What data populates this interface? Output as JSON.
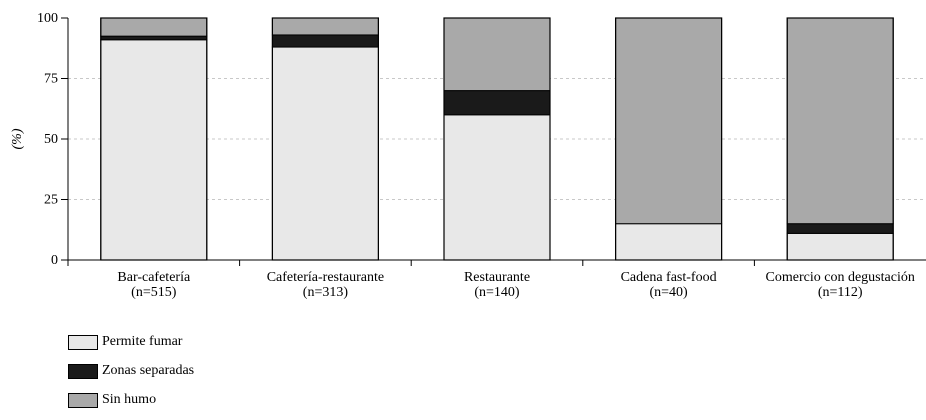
{
  "chart_data": {
    "type": "bar",
    "stacked": true,
    "categories": [
      [
        "Bar-cafetería",
        "(n=515)"
      ],
      [
        "Cafetería-restaurante",
        "(n=313)"
      ],
      [
        "Restaurante",
        "(n=140)"
      ],
      [
        "Cadena fast-food",
        "(n=40)"
      ],
      [
        "Comercio con degustación",
        "(n=112)"
      ]
    ],
    "series": [
      {
        "name": "Permite fumar",
        "color": "#e8e8e8",
        "values": [
          91,
          88,
          60,
          15,
          11
        ]
      },
      {
        "name": "Zonas separadas",
        "color": "#1a1a1a",
        "values": [
          1.5,
          5,
          10,
          0,
          4
        ]
      },
      {
        "name": "Sin humo",
        "color": "#a9a9a9",
        "values": [
          7.5,
          7,
          30,
          85,
          85
        ]
      }
    ],
    "ylabel": "(%)",
    "ylim": [
      0,
      100
    ],
    "yticks": [
      0,
      25,
      50,
      75,
      100
    ],
    "grid": true,
    "legend_position": "bottom-left"
  }
}
